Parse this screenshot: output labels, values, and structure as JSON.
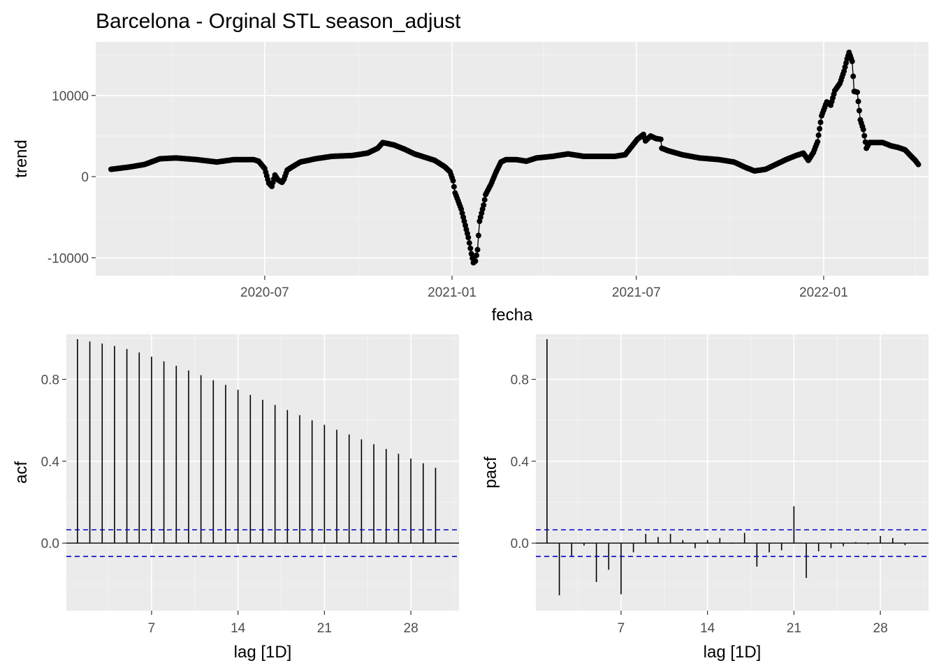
{
  "figure": {
    "title": "Barcelona - Orginal STL season_adjust"
  },
  "chart_data": [
    {
      "type": "line",
      "name": "trend",
      "title": "Barcelona - Orginal STL season_adjust",
      "xlabel": "fecha",
      "ylabel": "trend",
      "x_ticks": [
        "2020-07",
        "2021-01",
        "2021-07",
        "2022-01"
      ],
      "y_ticks": [
        -10000,
        0,
        10000
      ],
      "x_range": [
        "2020-01-17",
        "2022-04-14"
      ],
      "ylim": [
        -12200,
        16600
      ],
      "points": [
        [
          "2020-02-01",
          900
        ],
        [
          "2020-02-20",
          1200
        ],
        [
          "2020-03-05",
          1500
        ],
        [
          "2020-03-20",
          2200
        ],
        [
          "2020-04-05",
          2300
        ],
        [
          "2020-04-25",
          2100
        ],
        [
          "2020-05-15",
          1800
        ],
        [
          "2020-06-01",
          2100
        ],
        [
          "2020-06-20",
          2100
        ],
        [
          "2020-06-25",
          1900
        ],
        [
          "2020-07-01",
          1000
        ],
        [
          "2020-07-05",
          -800
        ],
        [
          "2020-07-08",
          -1200
        ],
        [
          "2020-07-11",
          200
        ],
        [
          "2020-07-14",
          -400
        ],
        [
          "2020-07-18",
          -700
        ],
        [
          "2020-07-20",
          -300
        ],
        [
          "2020-07-23",
          800
        ],
        [
          "2020-07-28",
          1200
        ],
        [
          "2020-08-05",
          1800
        ],
        [
          "2020-08-20",
          2200
        ],
        [
          "2020-09-05",
          2500
        ],
        [
          "2020-09-25",
          2600
        ],
        [
          "2020-10-10",
          2900
        ],
        [
          "2020-10-20",
          3500
        ],
        [
          "2020-10-25",
          4200
        ],
        [
          "2020-11-05",
          3900
        ],
        [
          "2020-11-15",
          3400
        ],
        [
          "2020-11-25",
          2800
        ],
        [
          "2020-12-05",
          2400
        ],
        [
          "2020-12-15",
          2000
        ],
        [
          "2020-12-25",
          1200
        ],
        [
          "2020-12-30",
          600
        ],
        [
          "2021-01-02",
          -500
        ],
        [
          "2021-01-04",
          -2000
        ],
        [
          "2021-01-07",
          -3000
        ],
        [
          "2021-01-10",
          -4000
        ],
        [
          "2021-01-13",
          -5500
        ],
        [
          "2021-01-17",
          -7500
        ],
        [
          "2021-01-20",
          -9500
        ],
        [
          "2021-01-22",
          -10600
        ],
        [
          "2021-01-24",
          -10400
        ],
        [
          "2021-01-26",
          -9000
        ],
        [
          "2021-01-28",
          -5500
        ],
        [
          "2021-02-01",
          -3500
        ],
        [
          "2021-02-03",
          -2200
        ],
        [
          "2021-02-08",
          -1000
        ],
        [
          "2021-02-13",
          500
        ],
        [
          "2021-02-18",
          1800
        ],
        [
          "2021-02-23",
          2100
        ],
        [
          "2021-03-05",
          2100
        ],
        [
          "2021-03-15",
          1900
        ],
        [
          "2021-03-25",
          2300
        ],
        [
          "2021-04-10",
          2500
        ],
        [
          "2021-04-25",
          2800
        ],
        [
          "2021-05-10",
          2500
        ],
        [
          "2021-05-25",
          2500
        ],
        [
          "2021-06-10",
          2500
        ],
        [
          "2021-06-20",
          2700
        ],
        [
          "2021-06-27",
          3800
        ],
        [
          "2021-07-02",
          4600
        ],
        [
          "2021-07-08",
          5200
        ],
        [
          "2021-07-10",
          4400
        ],
        [
          "2021-07-15",
          5000
        ],
        [
          "2021-07-20",
          4700
        ],
        [
          "2021-07-25",
          4600
        ],
        [
          "2021-07-26",
          3500
        ],
        [
          "2021-08-01",
          3200
        ],
        [
          "2021-08-15",
          2700
        ],
        [
          "2021-09-01",
          2300
        ],
        [
          "2021-09-20",
          2100
        ],
        [
          "2021-10-05",
          1800
        ],
        [
          "2021-10-15",
          1200
        ],
        [
          "2021-10-25",
          700
        ],
        [
          "2021-11-05",
          900
        ],
        [
          "2021-11-15",
          1500
        ],
        [
          "2021-11-25",
          2100
        ],
        [
          "2021-12-05",
          2600
        ],
        [
          "2021-12-12",
          2900
        ],
        [
          "2021-12-17",
          2000
        ],
        [
          "2021-12-22",
          3000
        ],
        [
          "2021-12-26",
          4300
        ],
        [
          "2021-12-30",
          7500
        ],
        [
          "2022-01-04",
          9200
        ],
        [
          "2022-01-08",
          8800
        ],
        [
          "2022-01-12",
          10600
        ],
        [
          "2022-01-17",
          11500
        ],
        [
          "2022-01-21",
          13000
        ],
        [
          "2022-01-24",
          14500
        ],
        [
          "2022-01-26",
          15300
        ],
        [
          "2022-01-29",
          14200
        ],
        [
          "2022-01-31",
          10500
        ],
        [
          "2022-02-03",
          10400
        ],
        [
          "2022-02-06",
          7000
        ],
        [
          "2022-02-09",
          5800
        ],
        [
          "2022-02-12",
          3500
        ],
        [
          "2022-02-15",
          4200
        ],
        [
          "2022-02-20",
          4200
        ],
        [
          "2022-02-28",
          4200
        ],
        [
          "2022-03-08",
          3800
        ],
        [
          "2022-03-15",
          3600
        ],
        [
          "2022-03-22",
          3300
        ],
        [
          "2022-03-28",
          2500
        ],
        [
          "2022-04-01",
          2000
        ],
        [
          "2022-04-04",
          1500
        ]
      ]
    },
    {
      "type": "bar",
      "name": "acf",
      "xlabel": "lag [1D]",
      "ylabel": "acf",
      "x_ticks": [
        7,
        14,
        21,
        28
      ],
      "y_ticks": [
        0.0,
        0.4,
        0.8
      ],
      "y_tick_labels": [
        "0.0",
        "0.4",
        "0.8"
      ],
      "xlim": [
        0.1,
        31.9
      ],
      "ylim": [
        -0.33,
        1.02
      ],
      "ci": 0.065,
      "lags": [
        1,
        2,
        3,
        4,
        5,
        6,
        7,
        8,
        9,
        10,
        11,
        12,
        13,
        14,
        15,
        16,
        17,
        18,
        19,
        20,
        21,
        22,
        23,
        24,
        25,
        26,
        27,
        28,
        29,
        30
      ],
      "values": [
        0.996,
        0.985,
        0.975,
        0.963,
        0.948,
        0.931,
        0.911,
        0.888,
        0.866,
        0.843,
        0.82,
        0.796,
        0.773,
        0.749,
        0.724,
        0.7,
        0.675,
        0.65,
        0.625,
        0.6,
        0.578,
        0.554,
        0.531,
        0.507,
        0.483,
        0.46,
        0.436,
        0.413,
        0.39,
        0.368
      ]
    },
    {
      "type": "bar",
      "name": "pacf",
      "xlabel": "lag [1D]",
      "ylabel": "pacf",
      "x_ticks": [
        7,
        14,
        21,
        28
      ],
      "y_ticks": [
        0.0,
        0.4,
        0.8
      ],
      "y_tick_labels": [
        "0.0",
        "0.4",
        "0.8"
      ],
      "xlim": [
        0.1,
        31.9
      ],
      "ylim": [
        -0.33,
        1.02
      ],
      "ci": 0.065,
      "lags": [
        1,
        2,
        3,
        4,
        5,
        6,
        7,
        8,
        9,
        10,
        11,
        12,
        13,
        14,
        15,
        16,
        17,
        18,
        19,
        20,
        21,
        22,
        23,
        24,
        25,
        26,
        27,
        28,
        29,
        30
      ],
      "values": [
        0.996,
        -0.255,
        -0.065,
        -0.012,
        -0.19,
        -0.13,
        -0.25,
        -0.045,
        0.045,
        0.03,
        0.045,
        0.015,
        -0.025,
        0.015,
        0.025,
        -0.003,
        0.05,
        -0.115,
        -0.045,
        -0.035,
        0.18,
        -0.17,
        -0.04,
        -0.025,
        -0.015,
        0.005,
        -0.005,
        0.035,
        0.025,
        -0.01
      ]
    }
  ],
  "colors": {
    "panel_background": "#ebebeb",
    "grid": "#ffffff",
    "series": "#000000",
    "ci_line": "#0000cc",
    "tick_text": "#4d4d4d"
  }
}
